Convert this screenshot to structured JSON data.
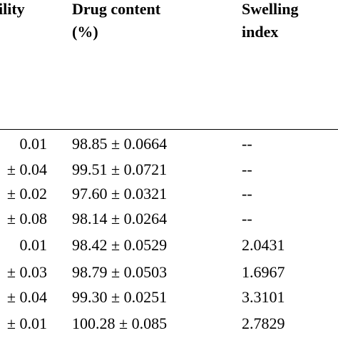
{
  "table": {
    "headers": {
      "col1": "ility",
      "col2_line1": "Drug content",
      "col2_line2": "(%)",
      "col3_line1": "Swelling",
      "col3_line2": "index"
    },
    "rows": [
      {
        "c1": "0.01",
        "c2": "98.85 ± 0.0664",
        "c3": "--"
      },
      {
        "c1": "± 0.04",
        "c2": "99.51 ± 0.0721",
        "c3": "--"
      },
      {
        "c1": "± 0.02",
        "c2": "97.60 ± 0.0321",
        "c3": "--"
      },
      {
        "c1": "± 0.08",
        "c2": "98.14 ± 0.0264",
        "c3": "--"
      },
      {
        "c1": "0.01",
        "c2": "98.42 ± 0.0529",
        "c3": "2.0431"
      },
      {
        "c1": "± 0.03",
        "c2": "98.79 ± 0.0503",
        "c3": "1.6967"
      },
      {
        "c1": "± 0.04",
        "c2": "99.30 ± 0.0251",
        "c3": "3.3101"
      },
      {
        "c1": "± 0.01",
        "c2": "100.28 ± 0.085",
        "c3": "2.7829"
      }
    ]
  }
}
